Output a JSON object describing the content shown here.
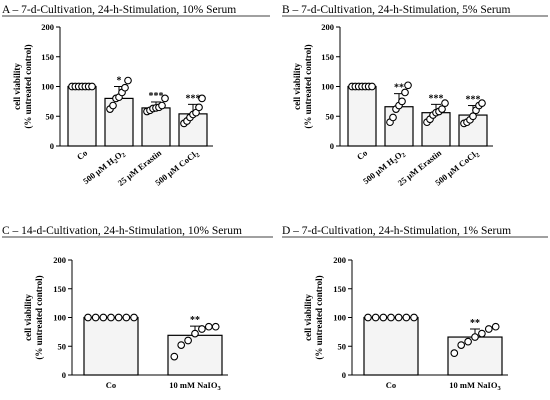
{
  "chart_data": [
    {
      "type": "bar",
      "title": "A – 7-d-Cultivation, 24-h-Stimulation, 10% Serum",
      "ylabel": [
        "cell viability",
        "(% untreated control)"
      ],
      "ylim": [
        0,
        200
      ],
      "yticks": [
        0,
        50,
        100,
        150,
        200
      ],
      "categories": [
        {
          "label": "Co",
          "sub": ""
        },
        {
          "label": "500 μM H",
          "sub": "2",
          "mid": "O",
          "sub2": "2"
        },
        {
          "label": "25 μM Erastin",
          "sub": ""
        },
        {
          "label": "500 μM CoCl",
          "sub": "2"
        }
      ],
      "values": [
        100,
        80,
        64,
        54
      ],
      "errors": [
        0,
        20,
        10,
        16
      ],
      "significance": [
        "",
        "*",
        "***",
        "***"
      ],
      "points": [
        [
          100,
          100,
          100,
          100,
          100,
          100,
          100
        ],
        [
          62,
          68,
          80,
          82,
          90,
          98,
          110
        ],
        [
          58,
          60,
          63,
          64,
          65,
          68,
          80
        ],
        [
          38,
          42,
          48,
          53,
          56,
          65,
          80
        ]
      ]
    },
    {
      "type": "bar",
      "title": "B – 7-d-Cultivation, 24-h-Stimulation, 5% Serum",
      "ylabel": [
        "cell viability",
        "(% untreated control)"
      ],
      "ylim": [
        0,
        200
      ],
      "yticks": [
        0,
        50,
        100,
        150,
        200
      ],
      "categories": [
        {
          "label": "Co",
          "sub": ""
        },
        {
          "label": "500 μM H",
          "sub": "2",
          "mid": "O",
          "sub2": "2"
        },
        {
          "label": "25 μM Erastin",
          "sub": ""
        },
        {
          "label": "500 μM CoCl",
          "sub": "2"
        }
      ],
      "values": [
        100,
        66,
        56,
        52
      ],
      "errors": [
        0,
        22,
        14,
        16
      ],
      "significance": [
        "",
        "**",
        "***",
        "***"
      ],
      "points": [
        [
          100,
          100,
          100,
          100,
          100,
          100,
          100
        ],
        [
          40,
          48,
          62,
          68,
          75,
          90,
          102
        ],
        [
          40,
          45,
          52,
          56,
          58,
          62,
          72
        ],
        [
          38,
          40,
          44,
          50,
          60,
          68,
          72
        ]
      ]
    },
    {
      "type": "bar",
      "title": "C – 14-d-Cultivation, 24-h-Stimulation, 10% Serum",
      "ylabel": [
        "cell viability",
        "(% untreated control)"
      ],
      "ylim": [
        0,
        200
      ],
      "yticks": [
        0,
        50,
        100,
        150,
        200
      ],
      "categories": [
        {
          "label": "Co",
          "sub": ""
        },
        {
          "label": "10 mM NaIO",
          "sub": "3"
        }
      ],
      "values": [
        100,
        69
      ],
      "errors": [
        0,
        16
      ],
      "significance": [
        "",
        "**"
      ],
      "points": [
        [
          100,
          100,
          100,
          100,
          100,
          100,
          100
        ],
        [
          32,
          52,
          60,
          72,
          80,
          84,
          84
        ]
      ]
    },
    {
      "type": "bar",
      "title": "D – 7-d-Cultivation, 24-h-Stimulation, 1% Serum",
      "ylabel": [
        "cell viability",
        "(% untreated control)"
      ],
      "ylim": [
        0,
        200
      ],
      "yticks": [
        0,
        50,
        100,
        150,
        200
      ],
      "categories": [
        {
          "label": "Co",
          "sub": ""
        },
        {
          "label": "10 mM NaIO",
          "sub": "3"
        }
      ],
      "values": [
        100,
        66
      ],
      "errors": [
        0,
        14
      ],
      "significance": [
        "",
        "**"
      ],
      "points": [
        [
          100,
          100,
          100,
          100,
          100,
          100,
          100
        ],
        [
          38,
          52,
          58,
          66,
          72,
          80,
          84
        ]
      ]
    }
  ]
}
